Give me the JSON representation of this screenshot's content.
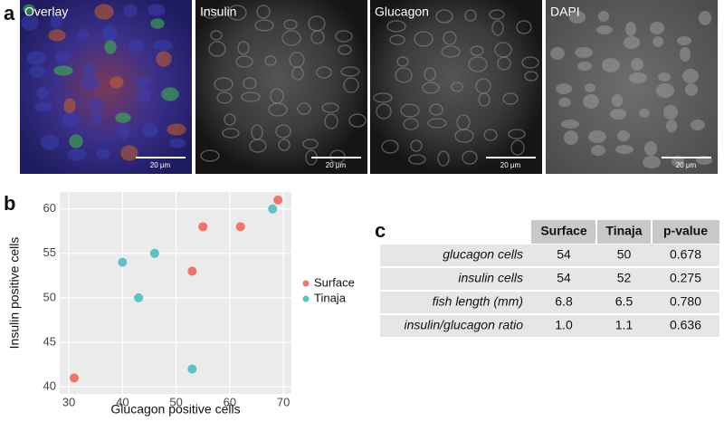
{
  "figure": {
    "labels": [
      "a",
      "b",
      "c"
    ]
  },
  "panels": [
    {
      "label": "Overlay",
      "scale": "20 μm"
    },
    {
      "label": "Insulin",
      "scale": "20 μm"
    },
    {
      "label": "Glucagon",
      "scale": "20 μm"
    },
    {
      "label": "DAPI",
      "scale": "20 μm"
    }
  ],
  "chart_data": {
    "type": "scatter",
    "x_label": "Glucagon positive cells",
    "y_label": "Insulin positive cells",
    "series": [
      {
        "name": "Surface",
        "color": "#f0746a",
        "x": [
          31,
          53,
          55,
          62,
          69
        ],
        "values": [
          41,
          53,
          58,
          58,
          61
        ]
      },
      {
        "name": "Tinaja",
        "color": "#5ec0c8",
        "x": [
          40,
          43,
          46,
          53,
          68
        ],
        "values": [
          54,
          50,
          55,
          42,
          60
        ]
      }
    ],
    "xlim": [
      28.3,
      71.5
    ],
    "ylim": [
      39.2,
      61.9
    ],
    "xticks": [
      30,
      40,
      50,
      60,
      70
    ],
    "yticks": [
      40,
      45,
      50,
      55,
      60
    ],
    "grid": true,
    "legend": "right"
  },
  "table": {
    "columns": [
      "Surface",
      "Tinaja",
      "p-value"
    ],
    "rows": [
      [
        "glucagon cells",
        "54",
        "50",
        "0.678"
      ],
      [
        "insulin cells",
        "54",
        "52",
        "0.275"
      ],
      [
        "fish length (mm)",
        "6.8",
        "6.5",
        "0.780"
      ],
      [
        "insulin/glucagon ratio",
        "1.0",
        "1.1",
        "0.636"
      ]
    ]
  }
}
